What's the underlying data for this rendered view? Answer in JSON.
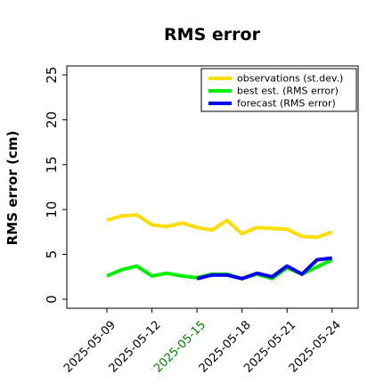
{
  "chart_data": {
    "type": "line",
    "title": "RMS error",
    "xlabel": "",
    "ylabel": "RMS error (cm)",
    "ylim": [
      -1,
      26
    ],
    "yticks": [
      0,
      5,
      10,
      15,
      20,
      25
    ],
    "grid": false,
    "legend_position": "top-right",
    "x": [
      "2025-05-09",
      "2025-05-10",
      "2025-05-11",
      "2025-05-12",
      "2025-05-13",
      "2025-05-14",
      "2025-05-15",
      "2025-05-16",
      "2025-05-17",
      "2025-05-18",
      "2025-05-19",
      "2025-05-20",
      "2025-05-21",
      "2025-05-22",
      "2025-05-23",
      "2025-05-24"
    ],
    "xtick_labels": [
      "2025-05-09",
      "2025-05-12",
      "2025-05-15",
      "2025-05-18",
      "2025-05-21",
      "2025-05-24"
    ],
    "highlighted_xtick": "2025-05-15",
    "highlight_color": "#008000",
    "series": [
      {
        "name": "observations (st.dev.)",
        "color": "#ffdd00",
        "values": [
          8.8,
          9.3,
          9.4,
          8.3,
          8.1,
          8.5,
          8.0,
          7.7,
          8.8,
          7.3,
          8.0,
          7.9,
          7.8,
          7.0,
          6.9,
          7.5
        ]
      },
      {
        "name": "best est. (RMS error)",
        "color": "#00ee00",
        "values": [
          2.6,
          3.3,
          3.7,
          2.6,
          2.9,
          2.6,
          2.4,
          2.8,
          2.8,
          2.3,
          2.8,
          2.3,
          3.5,
          2.8,
          3.6,
          4.4
        ]
      },
      {
        "name": "forecast (RMS error)",
        "color": "#0000ee",
        "values": [
          null,
          null,
          null,
          null,
          null,
          null,
          2.3,
          2.7,
          2.7,
          2.3,
          2.9,
          2.5,
          3.7,
          2.8,
          4.4,
          4.6
        ]
      }
    ]
  }
}
